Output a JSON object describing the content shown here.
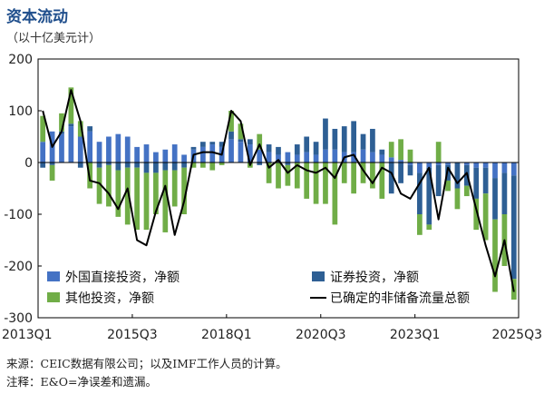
{
  "title": "资本流动",
  "subtitle": "（以十亿美元计）",
  "source": "来源：CEIC数据有限公司；以及IMF工作人员的计算。",
  "note": "注释：E&O=净误差和遗漏。",
  "chart_data": {
    "type": "bar",
    "stacked": true,
    "ylim": [
      -300,
      200
    ],
    "yticks": [
      200,
      100,
      0,
      -100,
      -200,
      -300
    ],
    "x_tick_labels": [
      {
        "index": 0,
        "label": "2013Q1"
      },
      {
        "index": 10,
        "label": "2015Q3"
      },
      {
        "index": 20,
        "label": "2018Q1"
      },
      {
        "index": 30,
        "label": "2020Q3"
      },
      {
        "index": 40,
        "label": "2023Q1"
      },
      {
        "index": 50,
        "label": "2025Q3"
      }
    ],
    "categories": [
      "2013Q1",
      "2013Q2",
      "2013Q3",
      "2013Q4",
      "2014Q1",
      "2014Q2",
      "2014Q3",
      "2014Q4",
      "2015Q1",
      "2015Q2",
      "2015Q3",
      "2015Q4",
      "2016Q1",
      "2016Q2",
      "2016Q3",
      "2016Q4",
      "2017Q1",
      "2017Q2",
      "2017Q3",
      "2017Q4",
      "2018Q1",
      "2018Q2",
      "2018Q3",
      "2018Q4",
      "2019Q1",
      "2019Q2",
      "2019Q3",
      "2019Q4",
      "2020Q1",
      "2020Q2",
      "2020Q3",
      "2020Q4",
      "2021Q1",
      "2021Q2",
      "2021Q3",
      "2021Q4",
      "2022Q1",
      "2022Q2",
      "2022Q3",
      "2022Q4",
      "2023Q1",
      "2023Q2",
      "2023Q3",
      "2023Q4",
      "2024Q1",
      "2024Q2",
      "2024Q3",
      "2024Q4",
      "2025Q1",
      "2025Q2",
      "2025Q3"
    ],
    "series": [
      {
        "name": "外国直接投资，净额",
        "color": "#4472c4",
        "values": [
          40,
          60,
          55,
          70,
          50,
          60,
          40,
          50,
          55,
          50,
          30,
          35,
          20,
          25,
          35,
          15,
          25,
          30,
          35,
          30,
          45,
          40,
          35,
          25,
          20,
          15,
          20,
          15,
          20,
          15,
          25,
          25,
          20,
          20,
          25,
          20,
          15,
          10,
          5,
          -5,
          -20,
          -10,
          -5,
          -5,
          0,
          -5,
          -10,
          -10,
          -30,
          -20,
          -25
        ]
      },
      {
        "name": "证券投资，净额",
        "color": "#2e5f94",
        "values": [
          -10,
          -5,
          5,
          5,
          -10,
          10,
          -10,
          -5,
          -15,
          -10,
          -10,
          -20,
          -20,
          -15,
          -15,
          -10,
          5,
          10,
          5,
          10,
          15,
          5,
          10,
          -5,
          15,
          15,
          -5,
          20,
          30,
          25,
          60,
          40,
          50,
          60,
          30,
          45,
          10,
          -60,
          -40,
          -20,
          -80,
          -110,
          -60,
          -30,
          -50,
          -40,
          -60,
          -50,
          -80,
          -80,
          -200
        ]
      },
      {
        "name": "其他投资，净额",
        "color": "#70ad47",
        "values": [
          50,
          -30,
          35,
          70,
          30,
          -50,
          -70,
          -80,
          -90,
          -110,
          -120,
          -110,
          -80,
          -120,
          -70,
          -90,
          -10,
          -10,
          -15,
          -5,
          40,
          30,
          -10,
          30,
          -40,
          -50,
          -40,
          -50,
          -70,
          -80,
          -80,
          -120,
          -40,
          -60,
          -40,
          -50,
          -70,
          30,
          40,
          25,
          -40,
          -10,
          40,
          -20,
          -40,
          -20,
          -60,
          -90,
          -140,
          -100,
          -40
        ]
      }
    ],
    "line": {
      "name": "已确定的非储备流量总额",
      "color": "#000000",
      "values": [
        100,
        30,
        60,
        140,
        80,
        -35,
        -40,
        -60,
        -90,
        -50,
        -150,
        -160,
        -95,
        -45,
        -140,
        -75,
        15,
        20,
        20,
        15,
        100,
        80,
        -5,
        35,
        -10,
        5,
        -20,
        -5,
        -15,
        -20,
        -10,
        -30,
        10,
        15,
        -15,
        -40,
        -10,
        -20,
        -60,
        -70,
        -40,
        -10,
        -110,
        -10,
        -40,
        -20,
        -90,
        -160,
        -220,
        -150,
        -250
      ]
    },
    "legend": [
      {
        "label": "外国直接投资，净额",
        "kind": "bar",
        "color": "#4472c4"
      },
      {
        "label": "证券投资，净额",
        "kind": "bar",
        "color": "#2e5f94"
      },
      {
        "label": "其他投资，净额",
        "kind": "bar",
        "color": "#70ad47"
      },
      {
        "label": "已确定的非储备流量总额",
        "kind": "line",
        "color": "#000000"
      }
    ],
    "legend_position": "bottom-left",
    "grid": false
  }
}
